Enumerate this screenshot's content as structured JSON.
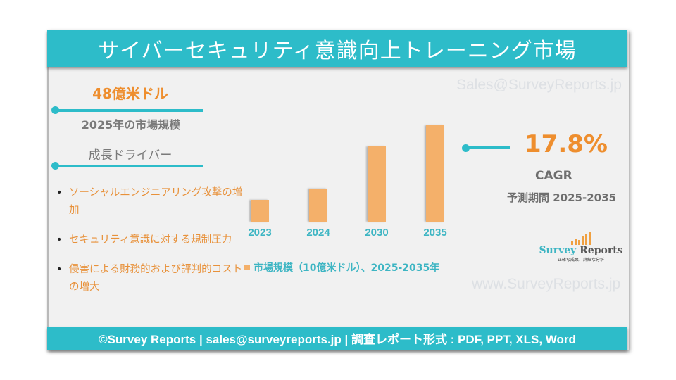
{
  "header": {
    "title": "サイバーセキュリティ意識向上トレーニング市場"
  },
  "market": {
    "value": "48億米ドル",
    "label": "2025年の市場規模"
  },
  "drivers": {
    "heading": "成長ドライバー",
    "items": [
      "ソーシャルエンジニアリング攻撃の増加",
      "セキュリティ意識に対する規制圧力",
      "侵害による財務的および評判的コストの増大"
    ]
  },
  "chart_data": {
    "type": "bar",
    "title": "",
    "categories": [
      "2023",
      "2024",
      "2030",
      "2035"
    ],
    "values": [
      5.6,
      8.5,
      19.3,
      24.7
    ],
    "series": [
      {
        "name": "市場規模（10億米ドル）、2025-2035年",
        "values": [
          5.6,
          8.5,
          19.3,
          24.7
        ]
      }
    ],
    "xlabel": "",
    "ylabel": "",
    "grid": false,
    "legend_position": "bottom",
    "bar_color": "#f4b06a",
    "note": "No y-axis shown; values estimated from relative bar heights"
  },
  "chart": {
    "legend_label": "市場規模（10億米ドル）、2025-2035年",
    "x_labels": [
      "2023",
      "2024",
      "2030",
      "2035"
    ]
  },
  "cagr": {
    "value": "17.8%",
    "label": "CAGR",
    "forecast_period": "予測期間 2025-2035"
  },
  "watermarks": {
    "email": "Sales@SurveyReports.jp",
    "website": "www.SurveyReports.jp"
  },
  "logo": {
    "name_part1": "Survey",
    "name_part2": " Reports",
    "tagline": "正確な成果、詳細な分析"
  },
  "footer": {
    "text": "©Survey Reports | sales@surveyreports.jp | 調査レポート形式 : PDF, PPT, XLS, Word"
  },
  "colors": {
    "teal": "#2dbcc9",
    "orange_text": "#ee8e2e",
    "bar_orange": "#f4b06a",
    "panel_bg": "#f1f1f1",
    "gray_text": "#7a7a7a"
  }
}
